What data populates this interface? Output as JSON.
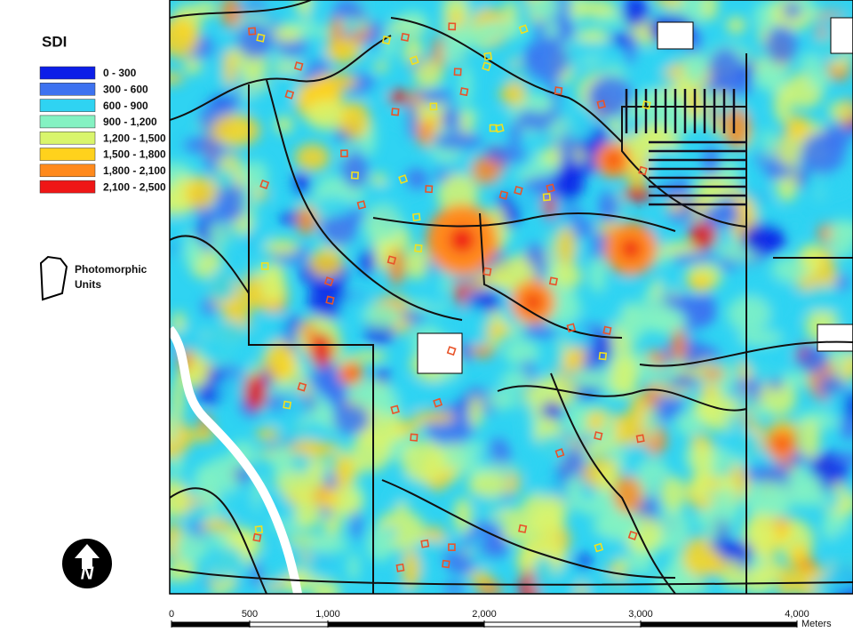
{
  "legend": {
    "title": "SDI",
    "items": [
      {
        "label": "0 - 300",
        "color": "#0c1ee8"
      },
      {
        "label": "300 - 600",
        "color": "#3d72f0"
      },
      {
        "label": "600 - 900",
        "color": "#2fd3f2"
      },
      {
        "label": "900 - 1,200",
        "color": "#84f2c2"
      },
      {
        "label": "1,200 - 1,500",
        "color": "#d9f56c"
      },
      {
        "label": "1,500 - 1,800",
        "color": "#ffd21c"
      },
      {
        "label": "1,800 - 2,100",
        "color": "#ff8a1c"
      },
      {
        "label": "2,100 - 2,500",
        "color": "#ef1616"
      }
    ],
    "units_label": [
      "Photomorphic",
      "Units"
    ]
  },
  "north_arrow": "N",
  "scale_bar": {
    "unit": "Meters",
    "range": [
      0,
      4000
    ],
    "ticks": [
      0,
      500,
      {
        "value": 1000,
        "label": "1,000"
      },
      {
        "value": 2000,
        "label": "2,000"
      },
      {
        "value": 3000,
        "label": "3,000"
      },
      {
        "value": 4000,
        "label": "4,000"
      }
    ]
  }
}
